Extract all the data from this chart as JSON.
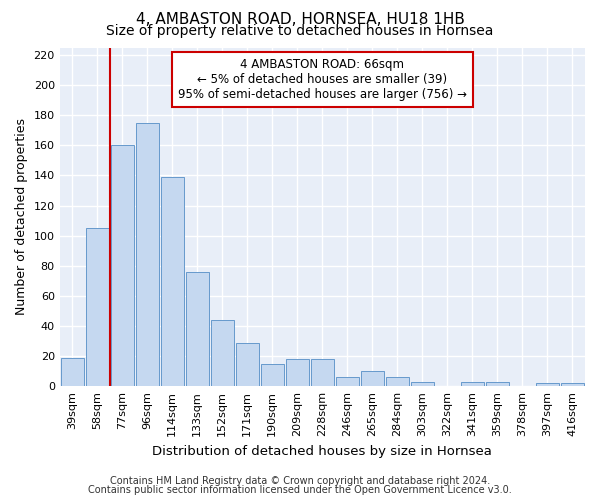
{
  "title1": "4, AMBASTON ROAD, HORNSEA, HU18 1HB",
  "title2": "Size of property relative to detached houses in Hornsea",
  "xlabel": "Distribution of detached houses by size in Hornsea",
  "ylabel": "Number of detached properties",
  "categories": [
    "39sqm",
    "58sqm",
    "77sqm",
    "96sqm",
    "114sqm",
    "133sqm",
    "152sqm",
    "171sqm",
    "190sqm",
    "209sqm",
    "228sqm",
    "246sqm",
    "265sqm",
    "284sqm",
    "303sqm",
    "322sqm",
    "341sqm",
    "359sqm",
    "378sqm",
    "397sqm",
    "416sqm"
  ],
  "values": [
    19,
    105,
    160,
    175,
    139,
    76,
    44,
    29,
    15,
    18,
    18,
    6,
    10,
    6,
    3,
    0,
    3,
    3,
    0,
    2,
    2
  ],
  "bar_color": "#c5d8f0",
  "bar_edge_color": "#6699cc",
  "annotation_box_text": "4 AMBASTON ROAD: 66sqm\n← 5% of detached houses are smaller (39)\n95% of semi-detached houses are larger (756) →",
  "vline_color": "#cc0000",
  "vline_x_index": 1.5,
  "ylim": [
    0,
    225
  ],
  "yticks": [
    0,
    20,
    40,
    60,
    80,
    100,
    120,
    140,
    160,
    180,
    200,
    220
  ],
  "footnote1": "Contains HM Land Registry data © Crown copyright and database right 2024.",
  "footnote2": "Contains public sector information licensed under the Open Government Licence v3.0.",
  "fig_background_color": "#ffffff",
  "axes_background_color": "#e8eef8",
  "grid_color": "#ffffff",
  "title_fontsize": 11,
  "subtitle_fontsize": 10,
  "axis_label_fontsize": 9,
  "tick_fontsize": 8,
  "annotation_fontsize": 8.5,
  "footnote_fontsize": 7
}
